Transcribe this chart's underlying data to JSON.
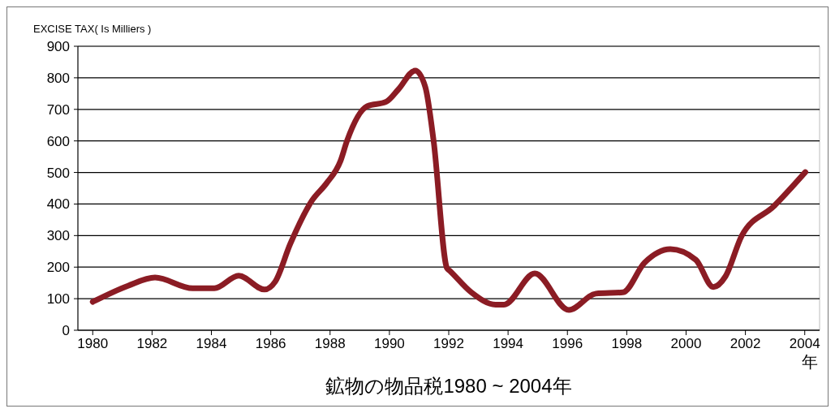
{
  "chart_data": {
    "type": "line",
    "title": "鉱物の物品税1980 ~ 2004年",
    "xlabel": "年",
    "ylabel": "EXCISE TAX( Is Milliers )",
    "x": [
      1980.0,
      1981.19,
      1982.1,
      1983.37,
      1984.1,
      1984.92,
      1985.79,
      1986.15,
      1986.66,
      1987.39,
      1987.89,
      1988.35,
      1988.57,
      1989.25,
      1989.89,
      1990.3,
      1990.87,
      1991.21,
      1991.49,
      1991.94,
      1992.03,
      1992.76,
      1993.58,
      1993.86,
      1994.9,
      1996.05,
      1996.96,
      1997.87,
      1998.6,
      1999.47,
      2000.33,
      2000.92,
      2001.33,
      2001.88,
      2002.97,
      2004.02
    ],
    "series": [
      {
        "color": "#8b1c24",
        "values": [
          90,
          141,
          167,
          133,
          133,
          173,
          129,
          154,
          274,
          411,
          467,
          536,
          600,
          710,
          724,
          763,
          823,
          771,
          600,
          197,
          189,
          120,
          81,
          81,
          180,
          64,
          116,
          120,
          214,
          257,
          223,
          137,
          171,
          300,
          394,
          501
        ]
      }
    ],
    "xlim": [
      1979.5,
      2004.5
    ],
    "xticks": [
      1980,
      1982,
      1984,
      1986,
      1988,
      1990,
      1992,
      1994,
      1996,
      1998,
      2000,
      2002,
      2004
    ],
    "ylim": [
      0,
      900
    ],
    "yticks": [
      0,
      100,
      200,
      300,
      400,
      500,
      600,
      700,
      800,
      900
    ],
    "grid": "y",
    "marker": "none",
    "line_style": "solid"
  }
}
